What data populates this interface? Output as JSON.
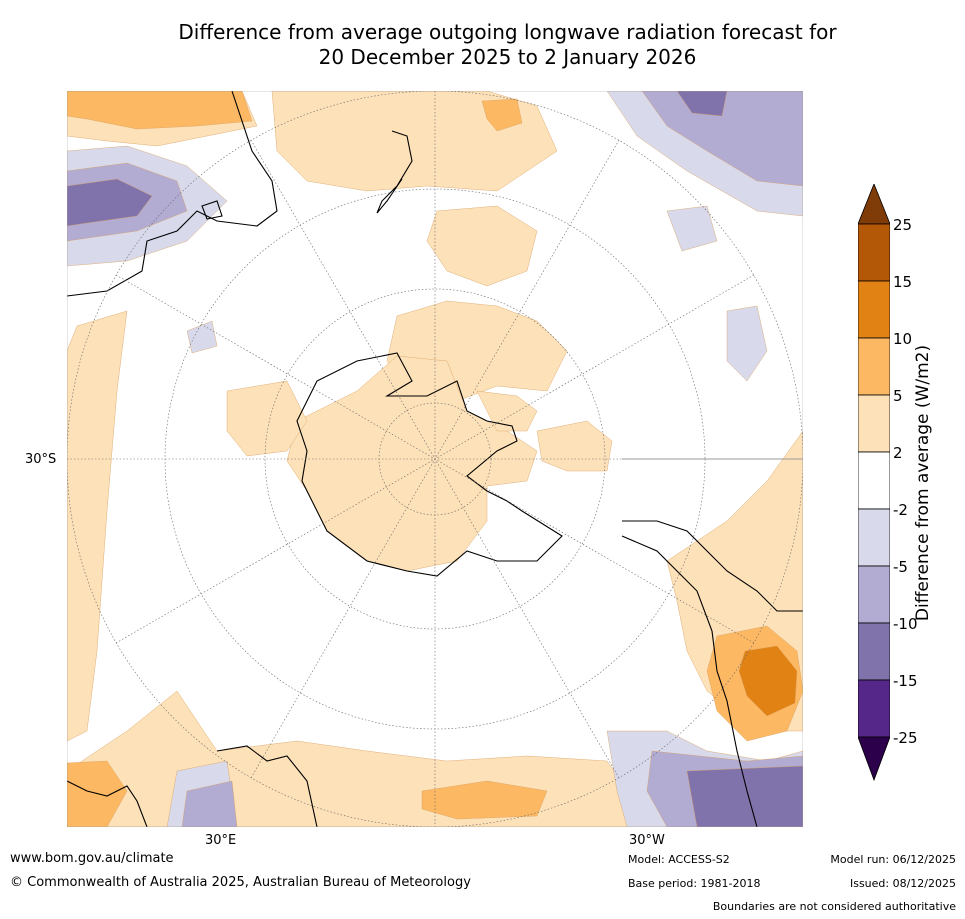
{
  "title": {
    "line1": "Difference from average outgoing longwave radiation forecast for",
    "line2": "20 December 2025 to 2 January 2026"
  },
  "map": {
    "projection": "south-polar stereographic",
    "graticule_labels": [
      "30°S",
      "30°E",
      "30°W"
    ],
    "palette": {
      "ocean": "#ffffff",
      "pos_2_5": "#fde1b8",
      "pos_5_10": "#fdb863",
      "pos_10_15": "#e08214",
      "pos_15_25": "#b35806",
      "pos_gt25": "#7f3b08",
      "neg_2_5": "#d8daeb",
      "neg_5_10": "#b2abd2",
      "neg_10_15": "#8073ac",
      "neg_15_25": "#542788",
      "neg_lt25": "#2d004b",
      "coast": "#000000",
      "border": "#7f7f7f"
    }
  },
  "colorbar": {
    "label": "Difference from average (W/m2)",
    "ticks": [
      "25",
      "15",
      "10",
      "5",
      "2",
      "-2",
      "-5",
      "-10",
      "-15",
      "-25"
    ],
    "colors": [
      "#7f3b08",
      "#b35806",
      "#e08214",
      "#fdb863",
      "#fde1b8",
      "#ffffff",
      "#d8daeb",
      "#b2abd2",
      "#8073ac",
      "#542788",
      "#2d004b"
    ]
  },
  "footer": {
    "website": "www.bom.gov.au/climate",
    "copyright": "© Commonwealth of Australia 2025, Australian Bureau of Meteorology",
    "model": "Model: ACCESS-S2",
    "base_period": "Base period: 1981-2018",
    "model_run": "Model run: 06/12/2025",
    "issued": "Issued: 08/12/2025",
    "disclaimer": "Boundaries are not considered authoritative"
  }
}
